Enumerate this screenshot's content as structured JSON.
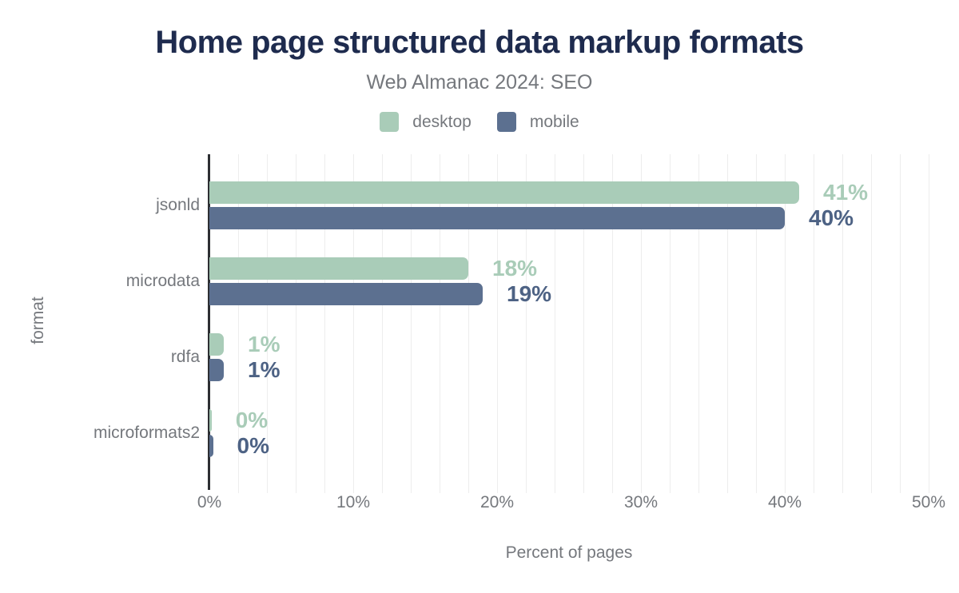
{
  "chart_data": {
    "type": "bar",
    "orientation": "horizontal",
    "title": "Home page structured data markup formats",
    "subtitle": "Web Almanac 2024: SEO",
    "xlabel": "Percent of pages",
    "ylabel": "format",
    "xlim": [
      0,
      50
    ],
    "x_ticks": [
      {
        "value": 0,
        "label": "0%"
      },
      {
        "value": 10,
        "label": "10%"
      },
      {
        "value": 20,
        "label": "20%"
      },
      {
        "value": 30,
        "label": "30%"
      },
      {
        "value": 40,
        "label": "40%"
      },
      {
        "value": 50,
        "label": "50%"
      }
    ],
    "grid": {
      "show": true,
      "minor_step": 2,
      "color": "#ededed"
    },
    "legend_position": "top",
    "categories": [
      "jsonld",
      "microdata",
      "rdfa",
      "microformats2"
    ],
    "series": [
      {
        "name": "desktop",
        "color": "#a9ccb8",
        "label_color": "#a9ccb8",
        "values": [
          41,
          18,
          1,
          0.15
        ],
        "value_labels": [
          "41%",
          "18%",
          "1%",
          "0%"
        ]
      },
      {
        "name": "mobile",
        "color": "#5c7090",
        "label_color": "#4d6284",
        "values": [
          40,
          19,
          1,
          0.25
        ],
        "value_labels": [
          "40%",
          "19%",
          "1%",
          "0%"
        ]
      }
    ],
    "colors": {
      "title": "#1e2b4e",
      "text": "#75787d",
      "axis": "#2d2f33",
      "background": "#ffffff"
    }
  }
}
